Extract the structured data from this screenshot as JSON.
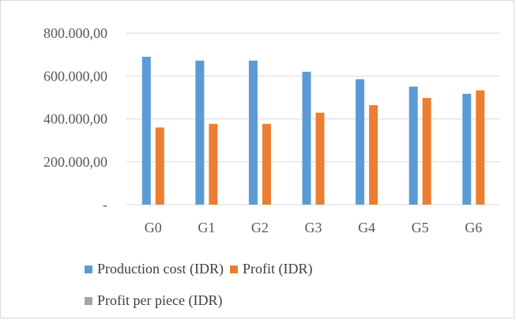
{
  "chart_data": {
    "type": "bar",
    "categories": [
      "G0",
      "G1",
      "G2",
      "G3",
      "G4",
      "G5",
      "G6"
    ],
    "series": [
      {
        "name": "Production cost (IDR)",
        "color": "#5B9BD5",
        "values": [
          690000,
          672000,
          672000,
          620000,
          585000,
          551000,
          517000
        ]
      },
      {
        "name": "Profit (IDR)",
        "color": "#ED7D31",
        "values": [
          360000,
          377000,
          377000,
          429000,
          464000,
          498000,
          533000
        ]
      },
      {
        "name": "Profit per piece (IDR)",
        "color": "#A5A5A5",
        "values": [
          0,
          0,
          0,
          0,
          0,
          0,
          0
        ]
      }
    ],
    "ylim": [
      0,
      800000
    ],
    "yticks": [
      0,
      200000,
      400000,
      600000,
      800000
    ],
    "ytick_labels": [
      "-",
      "200.000,00",
      "400.000,00",
      "600.000,00",
      "800.000,00"
    ],
    "grid": true,
    "legend_position": "bottom",
    "title": "",
    "xlabel": "",
    "ylabel": ""
  }
}
